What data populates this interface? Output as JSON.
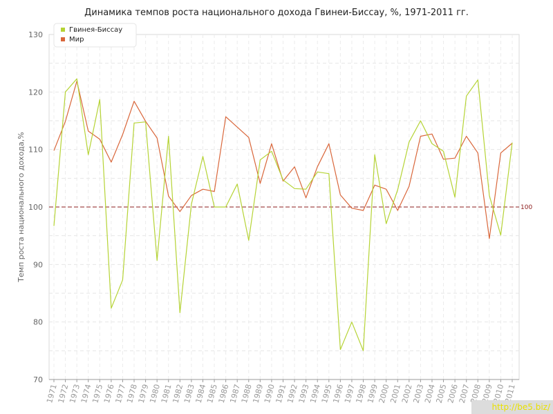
{
  "chart_data": {
    "type": "line",
    "title": "Динамика темпов роста национального дохода Гвинеи-Биссау, %, 1971-2011 гг.",
    "ylabel": "Темп роста национального дохода,%",
    "xlabel": "",
    "ylim": [
      70,
      130
    ],
    "yticks": [
      70,
      80,
      90,
      100,
      110,
      120,
      130
    ],
    "grid": true,
    "legend_position": "top-left",
    "reference_line": {
      "value": 100,
      "label": "100",
      "color": "#8b1a1a"
    },
    "x": [
      "1971",
      "1972",
      "1973",
      "1974",
      "1975",
      "1976",
      "1977",
      "1978",
      "1979",
      "1980",
      "1981",
      "1982",
      "1983",
      "1984",
      "1985",
      "1986",
      "1987",
      "1988",
      "1989",
      "1990",
      "1991",
      "1992",
      "1993",
      "1994",
      "1995",
      "1996",
      "1997",
      "1998",
      "1999",
      "2000",
      "2001",
      "2002",
      "2003",
      "2004",
      "2005",
      "2006",
      "2007",
      "2008",
      "2009",
      "2010",
      "2011"
    ],
    "series": [
      {
        "name": "Гвинея-Биссау",
        "color": "#b5d334",
        "values": [
          96.7,
          120.0,
          122.3,
          109.1,
          118.7,
          82.4,
          87.3,
          114.6,
          114.8,
          90.7,
          112.3,
          81.6,
          100.5,
          108.8,
          100.0,
          100.0,
          104.0,
          94.2,
          108.2,
          109.7,
          104.7,
          103.2,
          103.1,
          106.1,
          105.8,
          75.2,
          80.0,
          75.0,
          109.1,
          97.1,
          103.0,
          111.3,
          115.0,
          111.0,
          109.7,
          101.7,
          119.3,
          122.1,
          102.0,
          95.1,
          111.2
        ]
      },
      {
        "name": "Мир",
        "color": "#d9663a",
        "values": [
          109.8,
          114.9,
          121.9,
          113.2,
          111.8,
          107.8,
          112.6,
          118.4,
          114.9,
          112.0,
          101.9,
          99.2,
          102.0,
          103.1,
          102.7,
          115.7,
          113.9,
          112.1,
          104.1,
          111.0,
          104.5,
          107.0,
          101.6,
          107.0,
          111.0,
          102.1,
          99.8,
          99.4,
          103.8,
          103.1,
          99.4,
          103.6,
          112.3,
          112.7,
          108.3,
          108.5,
          112.3,
          109.4,
          94.5,
          109.4,
          111.1
        ]
      }
    ]
  },
  "watermark": "http://be5.biz/"
}
